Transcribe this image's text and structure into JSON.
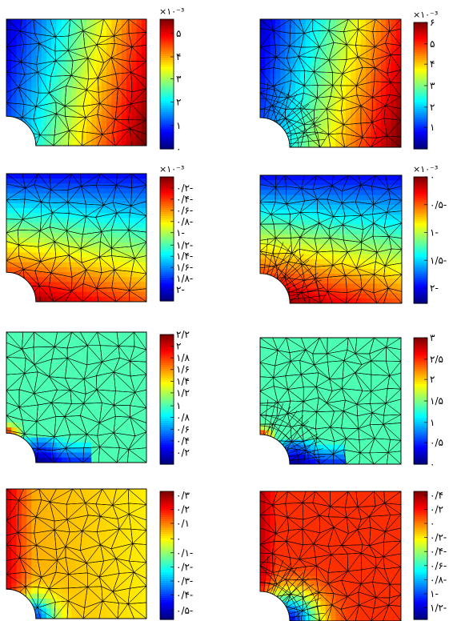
{
  "panels": [
    {
      "id": "r1-left",
      "field": "horizontal",
      "vmin": 0.0,
      "vmax": 1.0,
      "fine": false,
      "multiplier": "×۱۰⁻³",
      "ticks": [
        {
          "t": 0.0,
          "label": "۰"
        },
        {
          "t": 0.18,
          "label": "۱"
        },
        {
          "t": 0.36,
          "label": "۲"
        },
        {
          "t": 0.54,
          "label": "۳"
        },
        {
          "t": 0.71,
          "label": "۴"
        },
        {
          "t": 0.89,
          "label": "۵"
        }
      ]
    },
    {
      "id": "r1-right",
      "field": "horizontal",
      "vmin": 0.0,
      "vmax": 1.0,
      "fine": true,
      "multiplier": "×۱۰⁻³",
      "ticks": [
        {
          "t": 0.17,
          "label": "۱"
        },
        {
          "t": 0.33,
          "label": "۲"
        },
        {
          "t": 0.5,
          "label": "۳"
        },
        {
          "t": 0.67,
          "label": "۴"
        },
        {
          "t": 0.83,
          "label": "۵"
        },
        {
          "t": 1.0,
          "label": "۶"
        }
      ]
    },
    {
      "id": "r2-left",
      "field": "vertical",
      "vmin": 0.0,
      "vmax": 1.0,
      "fine": false,
      "multiplier": "×۱۰⁻³",
      "ticks": [
        {
          "t": 0.91,
          "label": "۰/۲-"
        },
        {
          "t": 0.82,
          "label": "۰/۴-"
        },
        {
          "t": 0.73,
          "label": "۰/۶-"
        },
        {
          "t": 0.64,
          "label": "۰/۸-"
        },
        {
          "t": 0.55,
          "label": "۱-"
        },
        {
          "t": 0.45,
          "label": "۱/۲-"
        },
        {
          "t": 0.36,
          "label": "۱/۴-"
        },
        {
          "t": 0.27,
          "label": "۱/۶-"
        },
        {
          "t": 0.18,
          "label": "۱/۸-"
        },
        {
          "t": 0.09,
          "label": "۲-"
        }
      ]
    },
    {
      "id": "r2-right",
      "field": "vertical",
      "vmin": 0.0,
      "vmax": 1.0,
      "fine": true,
      "multiplier": "×۱۰⁻³",
      "ticks": [
        {
          "t": 1.0,
          "label": "۰"
        },
        {
          "t": 0.78,
          "label": "۰/۵-"
        },
        {
          "t": 0.56,
          "label": "۱-"
        },
        {
          "t": 0.34,
          "label": "۱/۵-"
        },
        {
          "t": 0.12,
          "label": "۲-"
        }
      ]
    },
    {
      "id": "r3-left",
      "field": "concentration",
      "vmin": 0.0,
      "vmax": 1.0,
      "fine": false,
      "multiplier": "",
      "ticks": [
        {
          "t": 1.0,
          "label": "۲/۲"
        },
        {
          "t": 0.91,
          "label": "۲"
        },
        {
          "t": 0.82,
          "label": "۱/۸"
        },
        {
          "t": 0.73,
          "label": "۱/۶"
        },
        {
          "t": 0.64,
          "label": "۱/۴"
        },
        {
          "t": 0.55,
          "label": "۱/۲"
        },
        {
          "t": 0.45,
          "label": "۱"
        },
        {
          "t": 0.36,
          "label": "۰/۸"
        },
        {
          "t": 0.27,
          "label": "۰/۶"
        },
        {
          "t": 0.18,
          "label": "۰/۴"
        },
        {
          "t": 0.09,
          "label": "۰/۲"
        }
      ]
    },
    {
      "id": "r3-right",
      "field": "concentration",
      "vmin": 0.0,
      "vmax": 1.0,
      "fine": true,
      "multiplier": "",
      "ticks": [
        {
          "t": 1.0,
          "label": "۳"
        },
        {
          "t": 0.83,
          "label": "۲/۵"
        },
        {
          "t": 0.67,
          "label": "۲"
        },
        {
          "t": 0.5,
          "label": "۱/۵"
        },
        {
          "t": 0.33,
          "label": "۱"
        },
        {
          "t": 0.17,
          "label": "۰/۵"
        },
        {
          "t": 0.0,
          "label": "۰"
        }
      ]
    },
    {
      "id": "r4-left",
      "field": "shear",
      "vmin": 0.0,
      "vmax": 1.0,
      "fine": false,
      "multiplier": "",
      "ticks": [
        {
          "t": 0.97,
          "label": "۰/۳"
        },
        {
          "t": 0.86,
          "label": "۰/۲"
        },
        {
          "t": 0.75,
          "label": "۰/۱"
        },
        {
          "t": 0.63,
          "label": "۰"
        },
        {
          "t": 0.52,
          "label": "۰/۱-"
        },
        {
          "t": 0.41,
          "label": "۰/۲-"
        },
        {
          "t": 0.3,
          "label": "۰/۳-"
        },
        {
          "t": 0.19,
          "label": "۰/۴-"
        },
        {
          "t": 0.07,
          "label": "۰/۵-"
        }
      ]
    },
    {
      "id": "r4-right",
      "field": "shear2",
      "vmin": 0.0,
      "vmax": 1.0,
      "fine": true,
      "multiplier": "",
      "ticks": [
        {
          "t": 0.97,
          "label": "۰/۴"
        },
        {
          "t": 0.86,
          "label": "۰/۲"
        },
        {
          "t": 0.75,
          "label": "۰"
        },
        {
          "t": 0.64,
          "label": "۰/۲-"
        },
        {
          "t": 0.53,
          "label": "۰/۴-"
        },
        {
          "t": 0.42,
          "label": "۰/۶-"
        },
        {
          "t": 0.31,
          "label": "۰/۸-"
        },
        {
          "t": 0.2,
          "label": "۱-"
        },
        {
          "t": 0.09,
          "label": "۱/۲-"
        }
      ]
    }
  ]
}
